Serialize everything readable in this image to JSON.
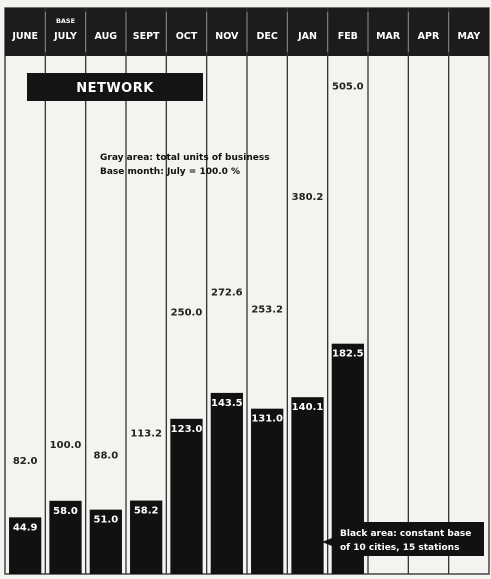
{
  "chart_data": {
    "type": "bar",
    "title": "NETWORK",
    "categories": [
      "JUNE",
      "JULY",
      "AUG",
      "SEPT",
      "OCT",
      "NOV",
      "DEC",
      "JAN",
      "FEB",
      "MAR",
      "APR",
      "MAY"
    ],
    "base_marker": {
      "category": "JULY",
      "label": "BASE"
    },
    "series": [
      {
        "values": [
          82.0,
          100.0,
          88.0,
          113.2,
          250.0,
          272.6,
          253.2,
          380.2,
          505.0,
          null,
          null,
          null
        ],
        "value_labels": [
          "82.0",
          "100.0",
          "88.0",
          "113.2",
          "250.0",
          "272.6",
          "253.2",
          "380.2",
          "505.0",
          "",
          "",
          ""
        ]
      },
      {
        "values": [
          44.9,
          58.0,
          51.0,
          58.2,
          123.0,
          143.5,
          131.0,
          140.1,
          182.5,
          null,
          null,
          null
        ],
        "value_labels": [
          "44.9",
          "58.0",
          "51.0",
          "58.2",
          "123.0",
          "143.5",
          "131.0",
          "140.1",
          "182.5",
          "",
          "",
          ""
        ]
      }
    ],
    "annotations": {
      "gray_note": [
        "Gray area: total units of business",
        "Base month: July = 100.0 %"
      ],
      "black_note": [
        "Black area: constant base",
        "of 10 cities, 15 stations"
      ]
    },
    "ylim": [
      0,
      505
    ],
    "colors": {
      "header": "#1c1c1c",
      "black_bar": "#111111",
      "background": "#f4f3ef",
      "divider": "#333333"
    }
  }
}
